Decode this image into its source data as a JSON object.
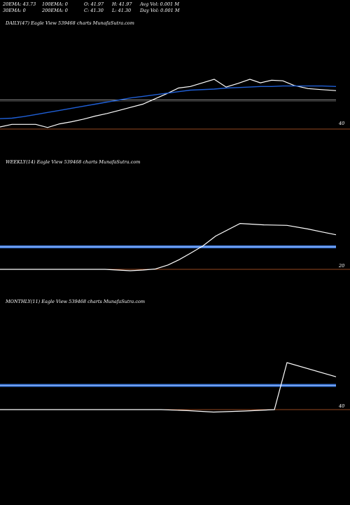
{
  "header": {
    "row1": [
      "20EMA: 43.73",
      "100EMA: 0",
      "O: 41.97",
      "H: 41.97",
      "Avg Vol: 0.001 M"
    ],
    "row2": [
      "30EMA: 0",
      "200EMA: 0",
      "C: 41.30",
      "L: 41.30",
      "Day Vol: 0.001 M"
    ]
  },
  "colors": {
    "background": "#000000",
    "price_line": "#ffffff",
    "ema_line": "#1f5fd6",
    "ema_band": "#3d7be0",
    "hline_gray": "#aaaaaa",
    "hline_orange": "#c8602a"
  },
  "chart_data": [
    {
      "type": "line",
      "title": "DAILY(47) Eagle  View  539468  charts MunafaSutra.com",
      "y_axis_label": "40",
      "series": [
        {
          "role": "price",
          "values": [
            40.4,
            40.9,
            40.9,
            40.9,
            40.3,
            41.0,
            41.4,
            41.9,
            42.5,
            43.0,
            43.6,
            44.2,
            44.8,
            45.8,
            46.8,
            47.9,
            48.2,
            49.6,
            48.1,
            48.8,
            49.6,
            48.9,
            49.4,
            49.3,
            48.4,
            47.8,
            47.6,
            47.4
          ]
        },
        {
          "role": "ema",
          "values": [
            42.0,
            42.1,
            42.4,
            42.8,
            43.2,
            43.6,
            44.0,
            44.4,
            44.8,
            45.2,
            45.6,
            46.0,
            46.3,
            46.6,
            46.9,
            47.2,
            47.5,
            47.7,
            47.9,
            48.0,
            48.1,
            48.2,
            48.2,
            48.3,
            48.3,
            48.3,
            48.3,
            48.2
          ]
        }
      ],
      "hlines": [
        45.6,
        40.0
      ]
    },
    {
      "type": "line",
      "title": "WEEKLY(14) Eagle  View  539468  charts MunafaSutra.com",
      "y_axis_label": "20",
      "series": [
        {
          "role": "price",
          "values": [
            20.0,
            20.0,
            20.0,
            20.0,
            20.0,
            20.0,
            19.6,
            19.2,
            19.6,
            20.2,
            22.5,
            25.6,
            29.3,
            33.6,
            39.2,
            46.5,
            45.7,
            45.4,
            43.3,
            41.6,
            40.0
          ]
        }
      ],
      "hlines": [
        33.0,
        20.0
      ]
    },
    {
      "type": "line",
      "title": "MONTHLY(11) Eagle  View  539468  charts MunafaSutra.com",
      "y_axis_label": "40",
      "series": [
        {
          "role": "price",
          "values": [
            5.0,
            5.0,
            5.0,
            5.0,
            5.0,
            5.0,
            5.0,
            4.4,
            3.6,
            4.2,
            5.0,
            32.2,
            24.0
          ]
        }
      ],
      "hlines": [
        19.0,
        5.0
      ]
    }
  ]
}
